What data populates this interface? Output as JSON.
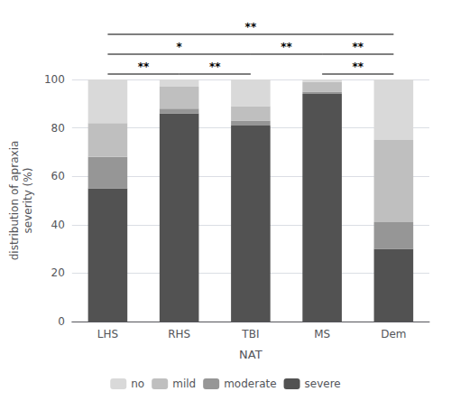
{
  "chart_data": {
    "type": "bar",
    "stacked": true,
    "xlabel": "NAT",
    "ylabel": "distribution of apraxia\nseverity (%)",
    "categories": [
      "LHS",
      "RHS",
      "TBI",
      "MS",
      "Dem"
    ],
    "series": [
      {
        "name": "severe",
        "color": "#525252",
        "values": [
          55,
          86,
          81,
          94,
          30
        ]
      },
      {
        "name": "moderate",
        "color": "#969696",
        "values": [
          13,
          2,
          2,
          1,
          11
        ]
      },
      {
        "name": "mild",
        "color": "#bfbfbf",
        "values": [
          14,
          9,
          6,
          4,
          34
        ]
      },
      {
        "name": "no",
        "color": "#d9d9d9",
        "values": [
          18,
          3,
          11,
          1,
          25
        ]
      }
    ],
    "ylim": [
      0,
      100
    ],
    "yticks": [
      0,
      20,
      40,
      60,
      80,
      100
    ],
    "grid": true,
    "legend": "bottom",
    "annotations": [
      {
        "from": "LHS",
        "to": "RHS",
        "level": 1,
        "text": "**"
      },
      {
        "from": "LHS",
        "to": "TBI",
        "level": 2,
        "text": "*"
      },
      {
        "from": "LHS",
        "to": "Dem",
        "level": 3,
        "text": "**"
      },
      {
        "from": "RHS",
        "to": "TBI",
        "level": 1,
        "text": "**"
      },
      {
        "from": "TBI",
        "to": "MS",
        "level": 2,
        "text": "**"
      },
      {
        "from": "MS",
        "to": "Dem",
        "level": 1,
        "text": "**"
      },
      {
        "from": "MS",
        "to": "Dem",
        "level": 2,
        "text": "**"
      }
    ]
  }
}
